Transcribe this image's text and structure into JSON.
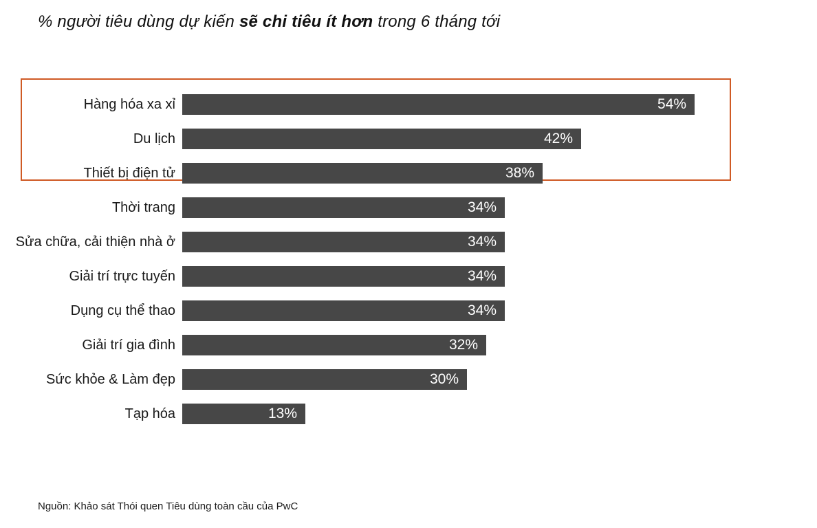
{
  "title": {
    "prefix": "% người tiêu dùng dự kiến ",
    "emphasis": "sẽ chi tiêu ít hơn",
    "suffix": " trong 6 tháng tới"
  },
  "source": "Nguồn: Khảo sát  Thói quen Tiêu dùng toàn cầu của PwC",
  "colors": {
    "bar": "#474747",
    "value_text": "#ffffff",
    "highlight_border": "#cf5a24",
    "title_text": "#111111",
    "background": "#ffffff"
  },
  "chart_data": {
    "type": "bar",
    "orientation": "horizontal",
    "title": "% người tiêu dùng dự kiến sẽ chi tiêu ít hơn trong 6 tháng tới",
    "xlabel": "",
    "ylabel": "",
    "xlim": [
      0,
      60
    ],
    "grid": false,
    "legend": false,
    "categories": [
      "Hàng hóa xa xỉ",
      "Du lịch",
      "Thiết bị điện tử",
      "Thời trang",
      "Sửa chữa, cải thiện nhà ở",
      "Giải trí trực tuyến",
      "Dụng cụ thể thao",
      "Giải trí gia đình",
      "Sức khỏe & Làm đẹp",
      "Tạp hóa"
    ],
    "values": [
      54,
      42,
      38,
      34,
      34,
      34,
      34,
      32,
      30,
      13
    ],
    "value_labels": [
      "54%",
      "42%",
      "38%",
      "34%",
      "34%",
      "34%",
      "34%",
      "32%",
      "30%",
      "13%"
    ],
    "highlighted_categories": [
      "Hàng hóa xa xỉ",
      "Du lịch",
      "Thiết bị điện tử"
    ]
  }
}
